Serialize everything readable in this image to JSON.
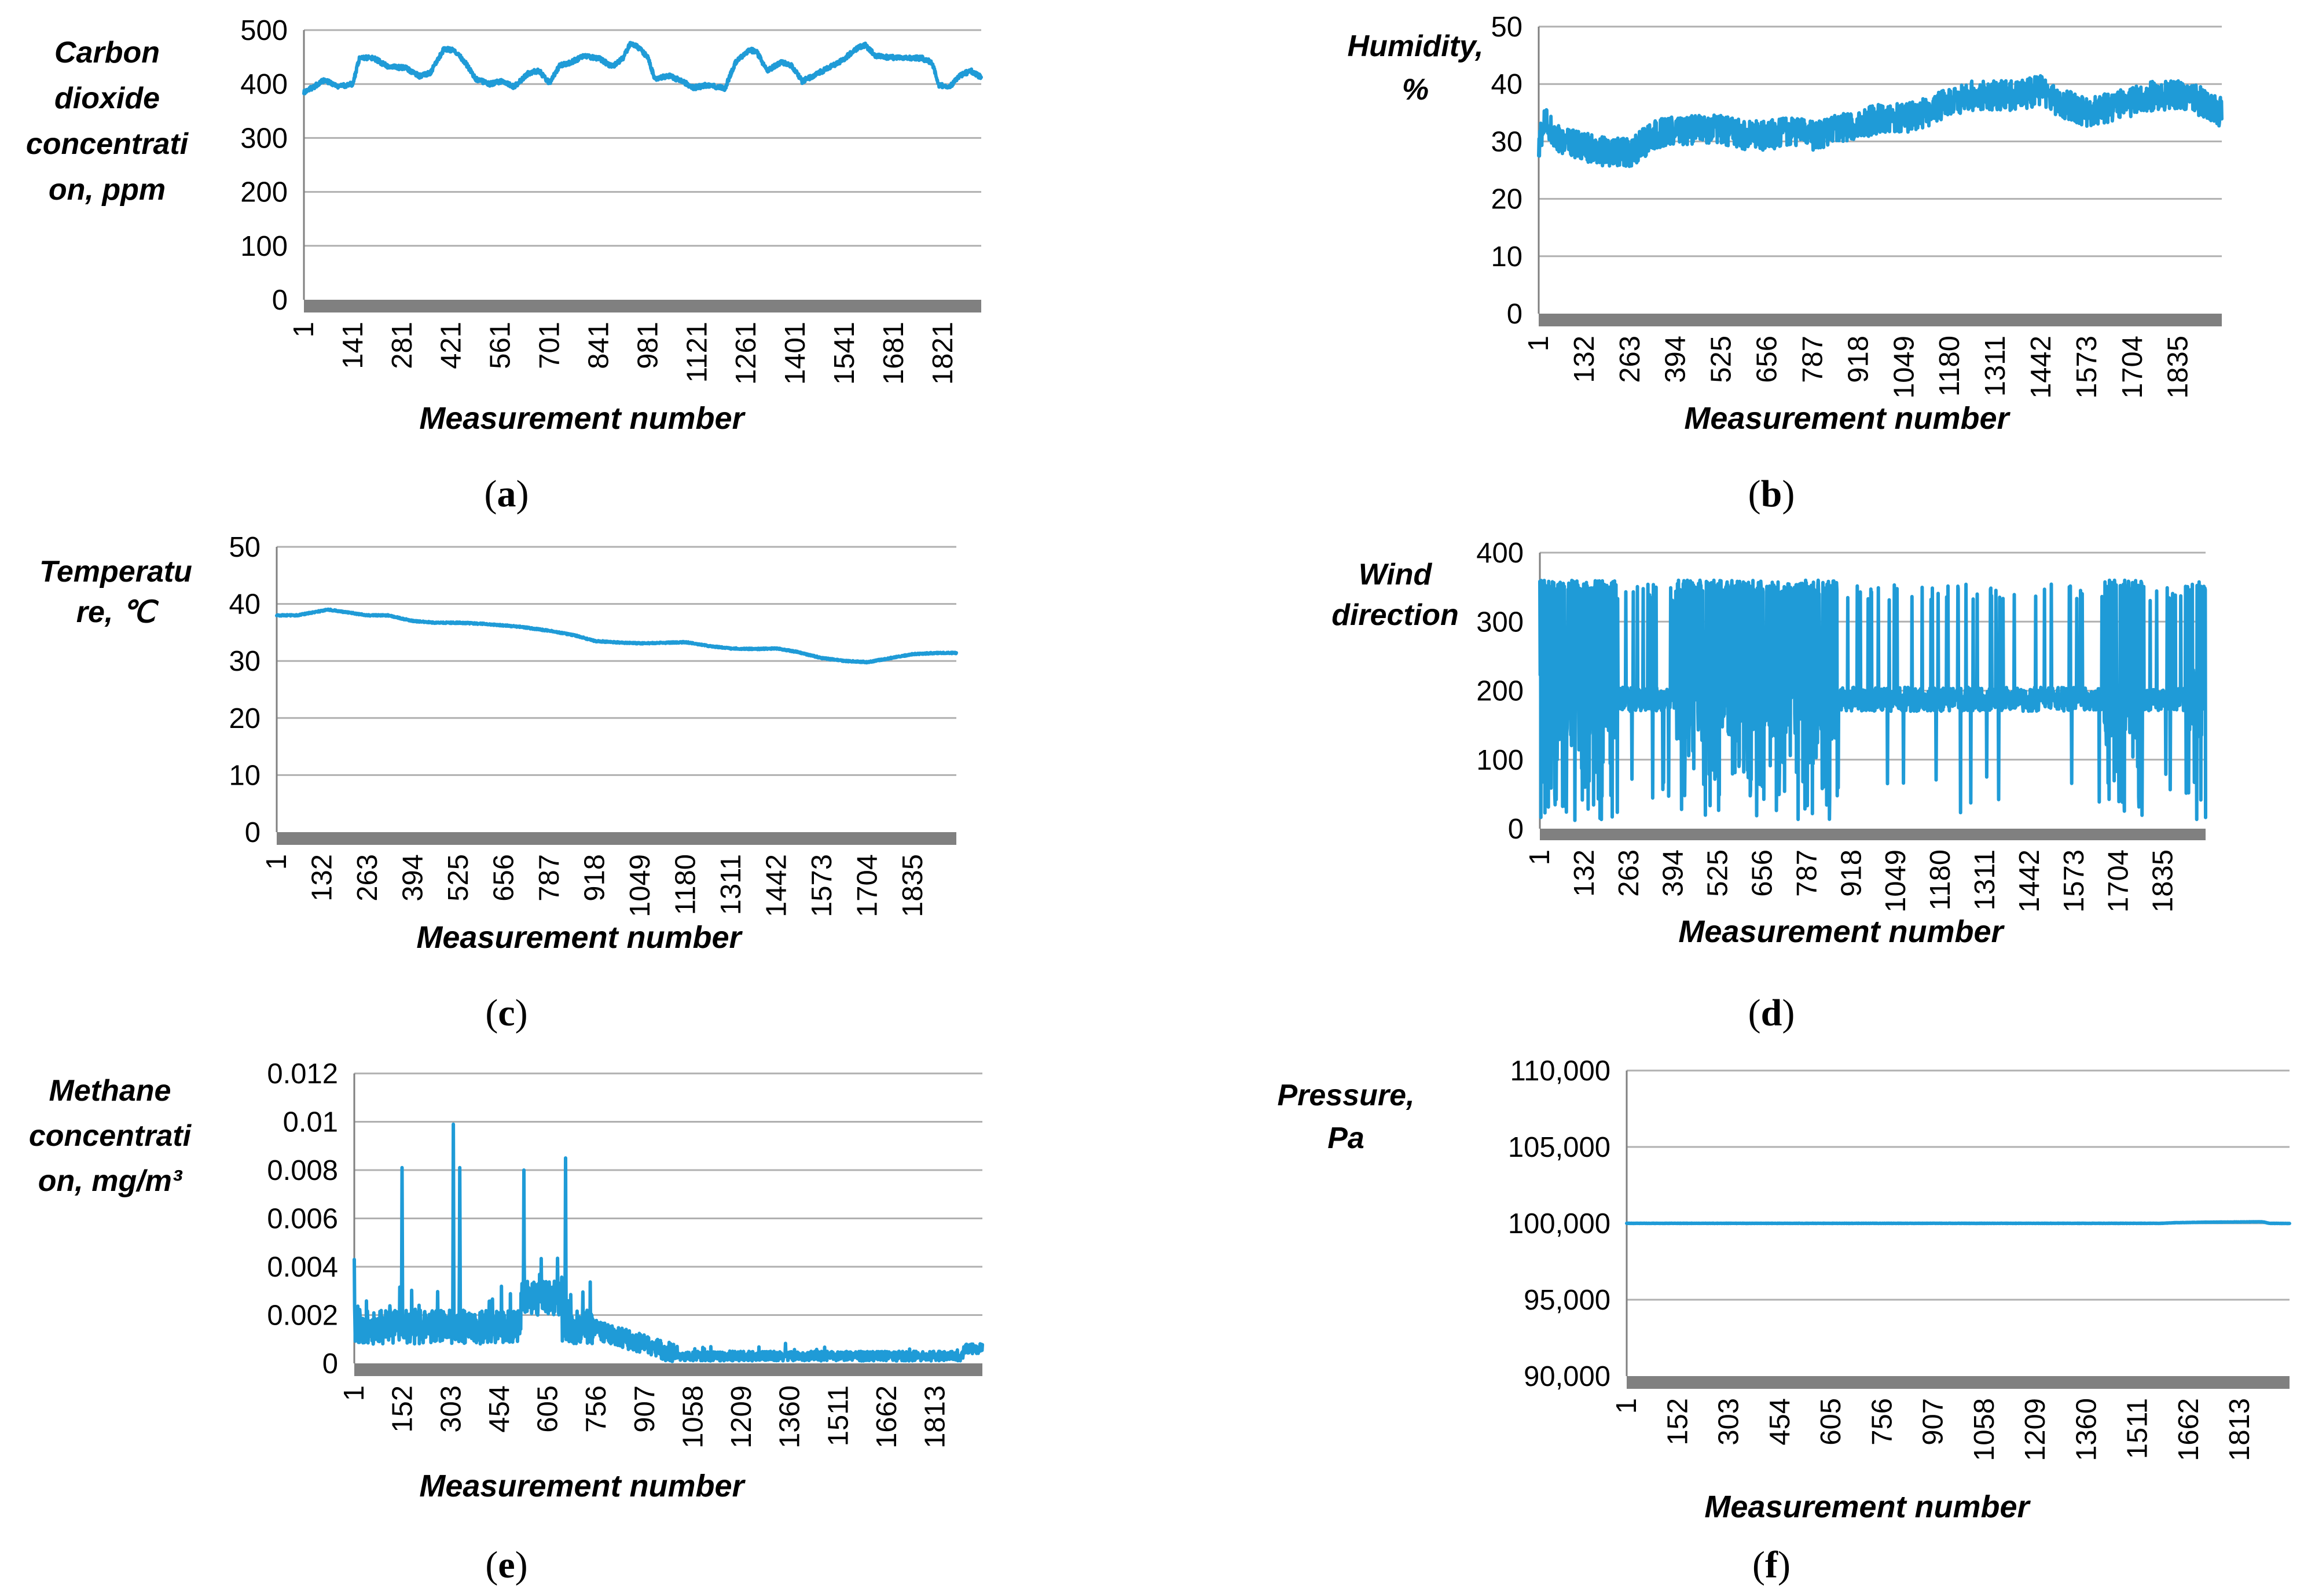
{
  "colors": {
    "series": "#1f9bd7",
    "grid": "#b0b0b0",
    "axis": "#808080"
  },
  "chart_data": [
    {
      "id": "a",
      "type": "line",
      "caption": "a",
      "ylabel_lines": [
        "Carbon",
        "dioxide",
        "concentrati",
        "on, ppm"
      ],
      "xlabel": "Measurement number",
      "y_ticks": [
        "0",
        "100",
        "200",
        "300",
        "400",
        "500"
      ],
      "ylim": [
        0,
        500
      ],
      "x_ticks": [
        "1",
        "141",
        "281",
        "421",
        "561",
        "701",
        "841",
        "981",
        "1121",
        "1261",
        "1401",
        "1541",
        "1681",
        "1821"
      ],
      "n_points": 1930,
      "noise": 4,
      "keypoints": [
        [
          1,
          385
        ],
        [
          30,
          395
        ],
        [
          60,
          408
        ],
        [
          100,
          395
        ],
        [
          140,
          400
        ],
        [
          160,
          450
        ],
        [
          200,
          448
        ],
        [
          240,
          432
        ],
        [
          290,
          430
        ],
        [
          330,
          415
        ],
        [
          360,
          420
        ],
        [
          400,
          465
        ],
        [
          430,
          462
        ],
        [
          460,
          440
        ],
        [
          490,
          410
        ],
        [
          530,
          400
        ],
        [
          560,
          405
        ],
        [
          600,
          395
        ],
        [
          640,
          420
        ],
        [
          670,
          425
        ],
        [
          700,
          402
        ],
        [
          730,
          435
        ],
        [
          760,
          440
        ],
        [
          800,
          452
        ],
        [
          840,
          448
        ],
        [
          880,
          432
        ],
        [
          910,
          448
        ],
        [
          930,
          475
        ],
        [
          950,
          470
        ],
        [
          980,
          450
        ],
        [
          1000,
          410
        ],
        [
          1040,
          415
        ],
        [
          1080,
          405
        ],
        [
          1110,
          393
        ],
        [
          1150,
          398
        ],
        [
          1200,
          392
        ],
        [
          1230,
          440
        ],
        [
          1270,
          463
        ],
        [
          1290,
          460
        ],
        [
          1320,
          425
        ],
        [
          1360,
          440
        ],
        [
          1390,
          435
        ],
        [
          1420,
          405
        ],
        [
          1460,
          418
        ],
        [
          1500,
          432
        ],
        [
          1530,
          442
        ],
        [
          1580,
          468
        ],
        [
          1600,
          472
        ],
        [
          1630,
          452
        ],
        [
          1660,
          450
        ],
        [
          1700,
          448
        ],
        [
          1760,
          448
        ],
        [
          1790,
          440
        ],
        [
          1810,
          398
        ],
        [
          1840,
          395
        ],
        [
          1870,
          415
        ],
        [
          1900,
          425
        ],
        [
          1930,
          412
        ]
      ]
    },
    {
      "id": "b",
      "type": "line",
      "caption": "b",
      "ylabel_lines": [
        "Humidity,",
        "%"
      ],
      "xlabel": "Measurement number",
      "y_ticks": [
        "0",
        "10",
        "20",
        "30",
        "40",
        "50"
      ],
      "ylim": [
        0,
        50
      ],
      "x_ticks": [
        "1",
        "132",
        "263",
        "394",
        "525",
        "656",
        "787",
        "918",
        "1049",
        "1180",
        "1311",
        "1442",
        "1573",
        "1704",
        "1835"
      ],
      "n_points": 1960,
      "noise": 2.6,
      "keypoints": [
        [
          1,
          29
        ],
        [
          20,
          34
        ],
        [
          60,
          30
        ],
        [
          130,
          29
        ],
        [
          200,
          28
        ],
        [
          263,
          28
        ],
        [
          330,
          31
        ],
        [
          394,
          32
        ],
        [
          460,
          32
        ],
        [
          525,
          32
        ],
        [
          600,
          31
        ],
        [
          656,
          31
        ],
        [
          720,
          32
        ],
        [
          787,
          31
        ],
        [
          850,
          32
        ],
        [
          918,
          33
        ],
        [
          980,
          34
        ],
        [
          1049,
          34
        ],
        [
          1110,
          35
        ],
        [
          1180,
          37
        ],
        [
          1250,
          38
        ],
        [
          1311,
          38
        ],
        [
          1380,
          38
        ],
        [
          1442,
          39
        ],
        [
          1480,
          37
        ],
        [
          1530,
          36
        ],
        [
          1573,
          35
        ],
        [
          1640,
          36
        ],
        [
          1704,
          37
        ],
        [
          1770,
          38
        ],
        [
          1835,
          38
        ],
        [
          1900,
          37
        ],
        [
          1960,
          35
        ]
      ]
    },
    {
      "id": "c",
      "type": "line",
      "caption": "c",
      "ylabel_lines": [
        "Temperatu",
        "re, ℃"
      ],
      "xlabel": "Measurement number",
      "y_ticks": [
        "0",
        "10",
        "20",
        "30",
        "40",
        "50"
      ],
      "ylim": [
        0,
        50
      ],
      "x_ticks": [
        "1",
        "132",
        "263",
        "394",
        "525",
        "656",
        "787",
        "918",
        "1049",
        "1180",
        "1311",
        "1442",
        "1573",
        "1704",
        "1835"
      ],
      "n_points": 1960,
      "noise": 0.12,
      "keypoints": [
        [
          1,
          38
        ],
        [
          60,
          38
        ],
        [
          150,
          39
        ],
        [
          263,
          38
        ],
        [
          320,
          38
        ],
        [
          394,
          37
        ],
        [
          460,
          36.7
        ],
        [
          525,
          36.7
        ],
        [
          600,
          36.5
        ],
        [
          700,
          36
        ],
        [
          787,
          35.3
        ],
        [
          860,
          34.5
        ],
        [
          918,
          33.5
        ],
        [
          1000,
          33.2
        ],
        [
          1049,
          33.1
        ],
        [
          1130,
          33.2
        ],
        [
          1180,
          33.3
        ],
        [
          1250,
          32.6
        ],
        [
          1311,
          32.2
        ],
        [
          1380,
          32.1
        ],
        [
          1442,
          32.2
        ],
        [
          1500,
          31.6
        ],
        [
          1573,
          30.5
        ],
        [
          1640,
          30
        ],
        [
          1704,
          29.8
        ],
        [
          1760,
          30.4
        ],
        [
          1835,
          31.2
        ],
        [
          1900,
          31.4
        ],
        [
          1960,
          31.4
        ]
      ]
    },
    {
      "id": "d",
      "type": "line",
      "caption": "d",
      "ylabel_lines": [
        "Wind",
        "direction"
      ],
      "xlabel": "Measurement number",
      "y_ticks": [
        "0",
        "100",
        "200",
        "300",
        "400"
      ],
      "ylim": [
        0,
        400
      ],
      "x_ticks": [
        "1",
        "132",
        "263",
        "394",
        "525",
        "656",
        "787",
        "918",
        "1049",
        "1180",
        "1311",
        "1442",
        "1573",
        "1704",
        "1835"
      ],
      "n_points": 1960,
      "mode": "wind"
    },
    {
      "id": "e",
      "type": "line",
      "caption": "e",
      "ylabel_lines": [
        "Methane",
        "concentrati",
        "on, mg/m³"
      ],
      "xlabel": "Measurement number",
      "y_ticks": [
        "0",
        "0.002",
        "0.004",
        "0.006",
        "0.008",
        "0.01",
        "0.012"
      ],
      "ylim": [
        0,
        0.012
      ],
      "x_ticks": [
        "1",
        "152",
        "303",
        "454",
        "605",
        "756",
        "907",
        "1058",
        "1209",
        "1360",
        "1511",
        "1662",
        "1813"
      ],
      "n_points": 1960,
      "mode": "methane",
      "spikes": [
        [
          1,
          0.0043
        ],
        [
          150,
          0.0081
        ],
        [
          310,
          0.0099
        ],
        [
          330,
          0.0081
        ],
        [
          530,
          0.008
        ],
        [
          660,
          0.0085
        ]
      ]
    },
    {
      "id": "f",
      "type": "line",
      "caption": "f",
      "ylabel_lines": [
        "Pressure,",
        "Pa"
      ],
      "xlabel": "Measurement number",
      "y_ticks": [
        "90,000",
        "95,000",
        "100,000",
        "105,000",
        "110,000"
      ],
      "ylim": [
        90000,
        110000
      ],
      "x_ticks": [
        "1",
        "152",
        "303",
        "454",
        "605",
        "756",
        "907",
        "1058",
        "1209",
        "1360",
        "1511",
        "1662",
        "1813"
      ],
      "n_points": 1960,
      "noise": 8,
      "keypoints": [
        [
          1,
          100000
        ],
        [
          1580,
          100000
        ],
        [
          1620,
          100040
        ],
        [
          1700,
          100070
        ],
        [
          1880,
          100100
        ],
        [
          1900,
          100000
        ],
        [
          1960,
          99990
        ]
      ]
    }
  ]
}
